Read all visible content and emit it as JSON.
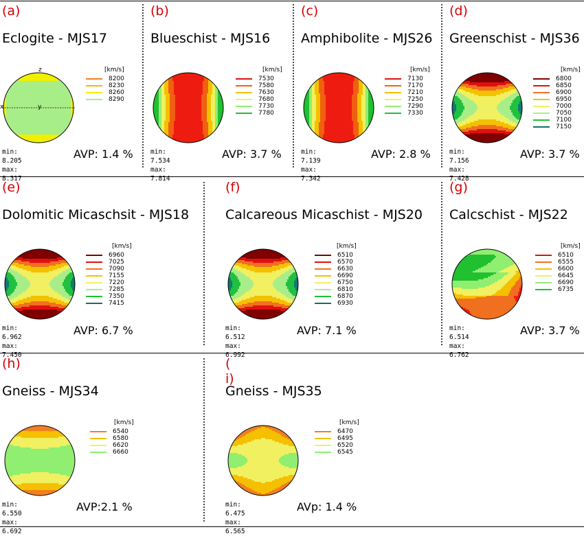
{
  "units_label": "[km/s]",
  "panels": [
    {
      "id": "a",
      "label": "(a)",
      "title": "Eclogite - MJS17",
      "min": "min: 8.205",
      "max": "max: 8.317",
      "avp": "AVP: 1.4 %",
      "axes": {
        "z": "z",
        "x": "x",
        "y": "y"
      },
      "legend": [
        {
          "value": "8200",
          "color": "#f08020"
        },
        {
          "value": "8230",
          "color": "#f5b800"
        },
        {
          "value": "8260",
          "color": "#f0f000"
        },
        {
          "value": "8290",
          "color": "#a8ee88"
        }
      ],
      "fill_levels": [
        "#a8ee88",
        "#f0f000",
        "#f08020"
      ]
    },
    {
      "id": "b",
      "label": "(b)",
      "title": "Blueschist - MJS16",
      "min": "min: 7.534",
      "max": "max: 7.814",
      "avp": "AVP: 3.7 %",
      "legend": [
        {
          "value": "7530",
          "color": "#e01010"
        },
        {
          "value": "7580",
          "color": "#f06010"
        },
        {
          "value": "7630",
          "color": "#f5c000"
        },
        {
          "value": "7680",
          "color": "#f0f060"
        },
        {
          "value": "7730",
          "color": "#90ee70"
        },
        {
          "value": "7780",
          "color": "#20c030"
        }
      ],
      "fill_levels": [
        "#20c030",
        "#90ee70",
        "#f0f060",
        "#f5c000",
        "#f06010",
        "#ee1c10"
      ]
    },
    {
      "id": "c",
      "label": "(c)",
      "title": "Amphibolite - MJS26",
      "min": "min: 7.139",
      "max": "max: 7.342",
      "avp": "AVP: 2.8 %",
      "legend": [
        {
          "value": "7130",
          "color": "#e01010"
        },
        {
          "value": "7170",
          "color": "#f06010"
        },
        {
          "value": "7210",
          "color": "#f5c000"
        },
        {
          "value": "7250",
          "color": "#f0f060"
        },
        {
          "value": "7290",
          "color": "#90ee70"
        },
        {
          "value": "7330",
          "color": "#20c030"
        }
      ],
      "fill_levels": [
        "#20c030",
        "#90ee70",
        "#f0f060",
        "#f5c000",
        "#f06010",
        "#ee1c10"
      ]
    },
    {
      "id": "d",
      "label": "(d)",
      "title": "Greenschist - MJS36",
      "min": "min: 7.156",
      "max": "max: 7.428",
      "avp": "AVP: 3.7 %",
      "legend": [
        {
          "value": "6800",
          "color": "#800000"
        },
        {
          "value": "6850",
          "color": "#e01010"
        },
        {
          "value": "6900",
          "color": "#f07020"
        },
        {
          "value": "6950",
          "color": "#f5c000"
        },
        {
          "value": "7000",
          "color": "#f0f060"
        },
        {
          "value": "7050",
          "color": "#a8ee88"
        },
        {
          "value": "7100",
          "color": "#20c030"
        },
        {
          "value": "7150",
          "color": "#107060"
        }
      ],
      "fill_levels": [
        "#107a70",
        "#20c040",
        "#a8ee88",
        "#f0f060",
        "#f5c000",
        "#f07020",
        "#e01010",
        "#800000"
      ]
    },
    {
      "id": "e",
      "label": "(e)",
      "title": "Dolomitic Micaschsit - MJS18",
      "min": "min: 6.962",
      "max": "max: 7.450",
      "avp": "AVP: 6.7 %",
      "legend": [
        {
          "value": "6960",
          "color": "#800000"
        },
        {
          "value": "7025",
          "color": "#e01010"
        },
        {
          "value": "7090",
          "color": "#f07020"
        },
        {
          "value": "7155",
          "color": "#f5c000"
        },
        {
          "value": "7220",
          "color": "#f0f060"
        },
        {
          "value": "7285",
          "color": "#a8ee88"
        },
        {
          "value": "7350",
          "color": "#20c030"
        },
        {
          "value": "7415",
          "color": "#107060"
        }
      ],
      "fill_levels": [
        "#107a70",
        "#20c040",
        "#a8ee88",
        "#f0f060",
        "#f5c000",
        "#f07020",
        "#e01010",
        "#800000"
      ]
    },
    {
      "id": "f",
      "label": "(f)",
      "title": "Calcareous Micaschist - MJS20",
      "min": "min: 6.512",
      "max": "max: 6.992",
      "avp": "AVP: 7.1 %",
      "legend": [
        {
          "value": "6510",
          "color": "#800000"
        },
        {
          "value": "6570",
          "color": "#e01010"
        },
        {
          "value": "6630",
          "color": "#f07020"
        },
        {
          "value": "6690",
          "color": "#f5c000"
        },
        {
          "value": "6750",
          "color": "#f0f060"
        },
        {
          "value": "6810",
          "color": "#a8ee88"
        },
        {
          "value": "6870",
          "color": "#20c030"
        },
        {
          "value": "6930",
          "color": "#107060"
        }
      ],
      "fill_levels": [
        "#107a70",
        "#20c040",
        "#a8ee88",
        "#f0f060",
        "#f5c000",
        "#f07020",
        "#e01010",
        "#800000"
      ]
    },
    {
      "id": "g",
      "label": "(g)",
      "title": "Calcschist - MJS22",
      "min": "min: 6.514",
      "max": "max: 6.762",
      "avp": "AVP: 3.7 %",
      "legend": [
        {
          "value": "6510",
          "color": "#e01010"
        },
        {
          "value": "6555",
          "color": "#f07020"
        },
        {
          "value": "6600",
          "color": "#f5c000"
        },
        {
          "value": "6645",
          "color": "#f0f060"
        },
        {
          "value": "6690",
          "color": "#90ee70"
        },
        {
          "value": "6735",
          "color": "#20c030"
        }
      ],
      "fill_levels": [
        "#20c030",
        "#90ee70",
        "#f0f060",
        "#f5c000",
        "#f07020",
        "#ee1c10"
      ]
    },
    {
      "id": "h",
      "label": "(h)",
      "title": "Gneiss - MJS34",
      "min": "min: 6.550",
      "max": "max: 6.692",
      "avp": "AVP:2.1 %",
      "legend": [
        {
          "value": "6540",
          "color": "#f08020"
        },
        {
          "value": "6580",
          "color": "#f5c000"
        },
        {
          "value": "6620",
          "color": "#f0f060"
        },
        {
          "value": "6660",
          "color": "#90ee70"
        }
      ],
      "fill_levels": [
        "#90ee70",
        "#f0f060",
        "#f5c000",
        "#f08020"
      ]
    },
    {
      "id": "i",
      "label": "( i)",
      "title": "Gneiss - MJS35",
      "min": "min: 6.475",
      "max": "max: 6.565",
      "avp": "AVp: 1.4 %",
      "legend": [
        {
          "value": "6470",
          "color": "#f08020"
        },
        {
          "value": "6495",
          "color": "#f5c000"
        },
        {
          "value": "6520",
          "color": "#f0f060"
        },
        {
          "value": "6545",
          "color": "#90ee70"
        }
      ],
      "fill_levels": [
        "#90ee70",
        "#f0f060",
        "#f5c000",
        "#f08020"
      ]
    }
  ]
}
